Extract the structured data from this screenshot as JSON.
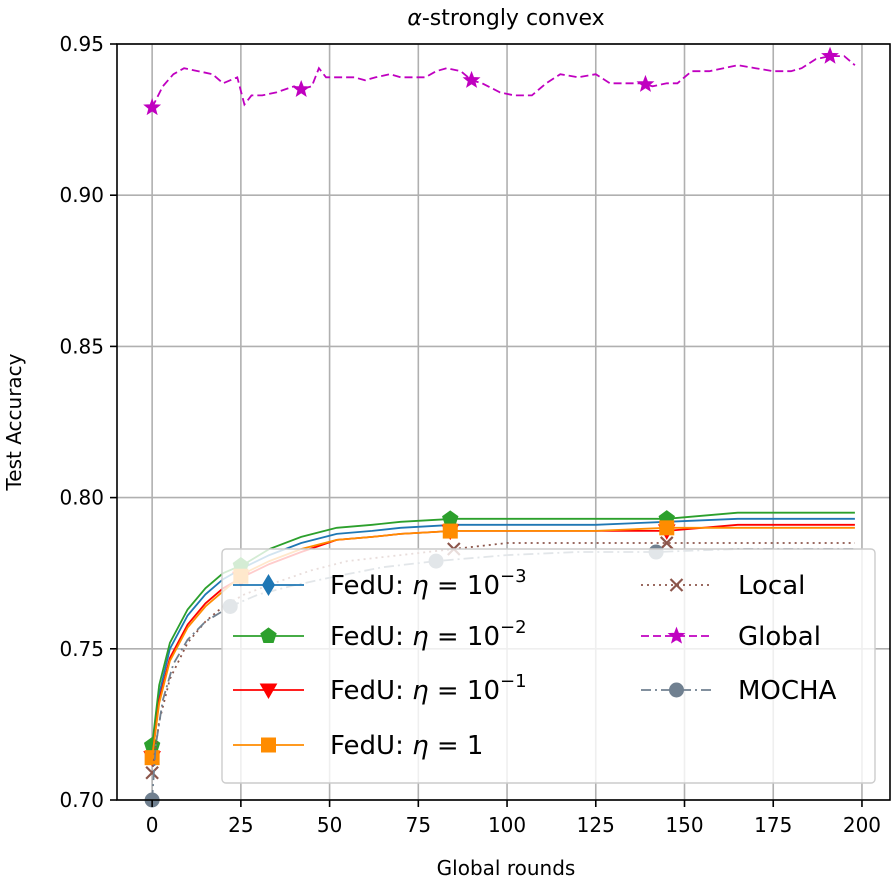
{
  "chart_data": {
    "type": "line",
    "title_prefix": "α",
    "title_suffix": "-strongly convex",
    "xlabel": "Global rounds",
    "ylabel": "Test Accuracy",
    "xlim": [
      -9.9,
      207.9
    ],
    "ylim": [
      0.7,
      0.95
    ],
    "x_ticks": [
      0,
      25,
      50,
      75,
      100,
      125,
      150,
      175,
      200
    ],
    "x_tick_labels": [
      "0",
      "25",
      "50",
      "75",
      "100",
      "125",
      "150",
      "175",
      "200"
    ],
    "y_ticks": [
      0.7,
      0.75,
      0.8,
      0.85,
      0.9,
      0.95
    ],
    "y_tick_labels": [
      "0.70",
      "0.75",
      "0.80",
      "0.85",
      "0.90",
      "0.95"
    ],
    "grid": true,
    "legend_position": "lower-right",
    "series": [
      {
        "key": "fedu1",
        "legend_main": "FedU",
        "legend_sep": ": ",
        "legend_eta": "η",
        "legend_eq": " = ",
        "legend_base": "10",
        "legend_exp": "−3",
        "color": "#1f77b4",
        "dash": "",
        "marker": "diamond",
        "x": [
          0,
          2,
          5,
          10,
          15,
          20,
          26,
          33,
          42,
          52,
          62,
          70,
          85,
          100,
          125,
          145,
          165,
          198
        ],
        "y": [
          0.716,
          0.735,
          0.75,
          0.761,
          0.768,
          0.773,
          0.777,
          0.781,
          0.785,
          0.788,
          0.789,
          0.79,
          0.791,
          0.791,
          0.791,
          0.792,
          0.793,
          0.793
        ],
        "marker_x": [
          0,
          25,
          84,
          145
        ]
      },
      {
        "key": "fedu2",
        "legend_main": "FedU",
        "legend_sep": ": ",
        "legend_eta": "η",
        "legend_eq": " = ",
        "legend_base": "10",
        "legend_exp": "−2",
        "color": "#2ca02c",
        "dash": "",
        "marker": "pentagon",
        "x": [
          0,
          2,
          5,
          10,
          15,
          20,
          26,
          33,
          42,
          52,
          62,
          70,
          85,
          100,
          125,
          145,
          165,
          198
        ],
        "y": [
          0.718,
          0.738,
          0.752,
          0.763,
          0.77,
          0.775,
          0.778,
          0.783,
          0.787,
          0.79,
          0.791,
          0.792,
          0.793,
          0.793,
          0.793,
          0.793,
          0.795,
          0.795
        ],
        "marker_x": [
          0,
          25,
          84,
          145
        ]
      },
      {
        "key": "fedu3",
        "legend_main": "FedU",
        "legend_sep": ": ",
        "legend_eta": "η",
        "legend_eq": " = ",
        "legend_base": "10",
        "legend_exp": "−1",
        "color": "#ff0000",
        "dash": "",
        "marker": "triangle-down",
        "x": [
          0,
          2,
          5,
          10,
          15,
          20,
          26,
          33,
          42,
          52,
          62,
          70,
          85,
          100,
          125,
          145,
          165,
          198
        ],
        "y": [
          0.714,
          0.733,
          0.747,
          0.758,
          0.765,
          0.77,
          0.774,
          0.778,
          0.782,
          0.786,
          0.787,
          0.788,
          0.789,
          0.789,
          0.789,
          0.789,
          0.791,
          0.791
        ],
        "marker_x": [
          0,
          25,
          84,
          145
        ]
      },
      {
        "key": "fedu4",
        "legend_main": "FedU",
        "legend_sep": ": ",
        "legend_eta": "η",
        "legend_eq": " = ",
        "legend_base": "1",
        "legend_exp": "",
        "color": "#ff8c00",
        "dash": "",
        "marker": "square",
        "x": [
          0,
          2,
          5,
          10,
          15,
          20,
          26,
          33,
          42,
          52,
          62,
          70,
          85,
          100,
          125,
          145,
          165,
          198
        ],
        "y": [
          0.714,
          0.732,
          0.746,
          0.757,
          0.764,
          0.769,
          0.775,
          0.779,
          0.783,
          0.786,
          0.787,
          0.788,
          0.789,
          0.789,
          0.789,
          0.79,
          0.79,
          0.79
        ],
        "marker_x": [
          0,
          25,
          84,
          145
        ]
      },
      {
        "key": "local",
        "legend_main": "Local",
        "color": "#8c564b",
        "dash": "2,4",
        "marker": "x",
        "x": [
          0,
          2,
          5,
          10,
          15,
          20,
          26,
          35,
          45,
          55,
          70,
          85,
          100,
          125,
          145,
          165,
          198
        ],
        "y": [
          0.709,
          0.726,
          0.74,
          0.752,
          0.759,
          0.764,
          0.768,
          0.772,
          0.776,
          0.779,
          0.781,
          0.783,
          0.785,
          0.785,
          0.785,
          0.785,
          0.785
        ],
        "marker_x": [
          0,
          85,
          145
        ]
      },
      {
        "key": "global",
        "legend_main": "Global",
        "color": "#c000c0",
        "dash": "8,4",
        "marker": "star",
        "x": [
          0,
          3,
          6,
          9,
          13,
          17,
          20,
          24,
          26,
          28,
          31,
          35,
          40,
          42,
          45,
          47,
          49,
          52,
          57,
          60,
          63,
          67,
          70,
          73,
          77,
          80,
          83,
          87,
          90,
          93,
          98,
          102,
          107,
          111,
          115,
          120,
          125,
          129,
          133,
          138,
          141,
          145,
          148,
          152,
          157,
          161,
          165,
          170,
          175,
          180,
          183,
          187,
          191,
          195,
          198
        ],
        "y": [
          0.929,
          0.936,
          0.94,
          0.942,
          0.941,
          0.94,
          0.937,
          0.939,
          0.93,
          0.933,
          0.933,
          0.934,
          0.936,
          0.935,
          0.936,
          0.942,
          0.939,
          0.939,
          0.939,
          0.938,
          0.939,
          0.94,
          0.939,
          0.939,
          0.939,
          0.941,
          0.942,
          0.941,
          0.938,
          0.937,
          0.934,
          0.933,
          0.933,
          0.937,
          0.94,
          0.939,
          0.94,
          0.937,
          0.937,
          0.937,
          0.936,
          0.937,
          0.937,
          0.941,
          0.941,
          0.942,
          0.943,
          0.942,
          0.941,
          0.941,
          0.942,
          0.945,
          0.946,
          0.946,
          0.943
        ],
        "marker_x": [
          0,
          42,
          90,
          139,
          191
        ]
      },
      {
        "key": "mocha",
        "legend_main": "MOCHA",
        "color": "#708090",
        "dash": "10,4,2,4",
        "marker": "circle",
        "x": [
          0,
          1,
          3,
          6,
          10,
          15,
          22,
          30,
          40,
          52,
          65,
          80,
          100,
          120,
          142,
          165,
          198
        ],
        "y": [
          0.7,
          0.718,
          0.733,
          0.745,
          0.753,
          0.759,
          0.764,
          0.768,
          0.771,
          0.774,
          0.777,
          0.779,
          0.781,
          0.782,
          0.782,
          0.783,
          0.783
        ],
        "marker_x": [
          0,
          22,
          80,
          142
        ]
      }
    ]
  }
}
